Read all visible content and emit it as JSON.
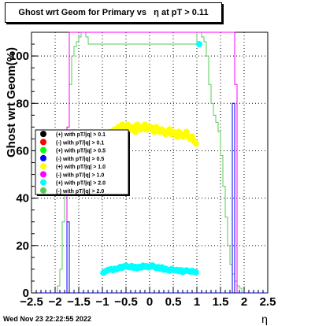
{
  "chart_data": {
    "type": "scatter",
    "title": "Ghost wrt Geom for Primary vs   η at pT > 0.11",
    "xlabel": "η",
    "ylabel": "Ghost wrt Geom(%)",
    "xlim": [
      -2.5,
      2.5
    ],
    "ylim": [
      0,
      110
    ],
    "xticks": [
      -2.5,
      -2,
      -1.5,
      -1,
      -0.5,
      0,
      0.5,
      1,
      1.5,
      2,
      2.5
    ],
    "yticks": [
      0,
      20,
      40,
      60,
      80,
      100
    ],
    "grid": true,
    "legend_position": "left-middle",
    "legend": [
      {
        "label": "(+) with pT/|q| > 0.1",
        "color": "#000000"
      },
      {
        "label": "(-) with pT/|q| > 0.1",
        "color": "#ff0000"
      },
      {
        "label": "(+) with pT/|q| > 0.5",
        "color": "#00ff00"
      },
      {
        "label": "(-) with pT/|q| > 0.5",
        "color": "#0000ff"
      },
      {
        "label": "(+) with pT/|q| > 1.0",
        "color": "#ffff00"
      },
      {
        "label": "(-) with pT/|q| > 1.0",
        "color": "#ff00ff"
      },
      {
        "label": "(+) with pT/|q| > 2.0",
        "color": "#00ffff"
      },
      {
        "label": "(-) with pT/|q| > 2.0",
        "color": "#55cc55"
      }
    ],
    "series": [
      {
        "color": "#ffff00",
        "x": [
          -0.98,
          -0.94,
          -0.9,
          -0.86,
          -0.82,
          -0.78,
          -0.74,
          -0.7,
          -0.66,
          -0.62,
          -0.58,
          -0.54,
          -0.5,
          -0.46,
          -0.42,
          -0.38,
          -0.34,
          -0.3,
          -0.26,
          -0.22,
          -0.18,
          -0.14,
          -0.1,
          -0.06,
          -0.02,
          0.02,
          0.06,
          0.1,
          0.14,
          0.18,
          0.22,
          0.26,
          0.3,
          0.34,
          0.38,
          0.42,
          0.46,
          0.5,
          0.54,
          0.58,
          0.62,
          0.66,
          0.7,
          0.74,
          0.78,
          0.82,
          0.86,
          0.9,
          0.94,
          0.98
        ],
        "y": [
          64,
          66,
          65,
          67,
          68,
          67,
          69,
          68,
          70,
          69,
          71,
          70,
          70,
          71,
          70,
          69,
          70,
          68,
          71,
          70,
          69,
          70,
          71,
          69,
          70,
          70,
          69,
          68,
          70,
          69,
          68,
          69,
          68,
          67,
          68,
          69,
          67,
          68,
          67,
          66,
          68,
          67,
          66,
          67,
          68,
          66,
          65,
          66,
          64,
          63
        ]
      },
      {
        "color": "#00ffff",
        "x": [
          -0.98,
          -0.94,
          -0.9,
          -0.86,
          -0.82,
          -0.78,
          -0.74,
          -0.7,
          -0.66,
          -0.62,
          -0.58,
          -0.54,
          -0.5,
          -0.46,
          -0.42,
          -0.38,
          -0.34,
          -0.3,
          -0.26,
          -0.22,
          -0.18,
          -0.14,
          -0.1,
          -0.06,
          -0.02,
          0.02,
          0.06,
          0.1,
          0.14,
          0.18,
          0.22,
          0.26,
          0.3,
          0.34,
          0.38,
          0.42,
          0.46,
          0.5,
          0.54,
          0.58,
          0.62,
          0.66,
          0.7,
          0.74,
          0.78,
          0.82,
          0.86,
          0.9,
          0.94,
          0.98
        ],
        "y": [
          8.5,
          9,
          9.5,
          9.8,
          10,
          9.6,
          10.2,
          10,
          10.4,
          11,
          10.6,
          11.2,
          11.5,
          11,
          10.8,
          11.4,
          10.6,
          11,
          10.4,
          11,
          10.7,
          11.5,
          11,
          11.3,
          10.8,
          11.2,
          11.6,
          11,
          10.5,
          10.9,
          10.3,
          10.8,
          9.8,
          10.2,
          9.7,
          9.4,
          10,
          9.8,
          9.5,
          9.7,
          9.2,
          9.6,
          8.8,
          9.3,
          9.5,
          9.2,
          9,
          9.3,
          8.9,
          8.7
        ]
      },
      {
        "color": "#00ffff",
        "x": [
          1.05
        ],
        "y": [
          105
        ]
      }
    ],
    "histograms": [
      {
        "color": "#55cc55",
        "edges": [
          -2.5,
          -1.95,
          -1.9,
          -1.85,
          -1.8,
          -1.75,
          -1.7,
          -1.65,
          -1.6,
          -1.55,
          -1.5,
          -1.45,
          -1.4,
          -1.35,
          -1.3,
          -1.0,
          -0.9,
          0.9,
          1.0,
          1.05,
          1.1,
          1.15,
          1.2,
          1.25,
          1.3,
          1.35,
          1.4,
          1.45,
          1.5,
          1.55,
          1.6,
          1.65,
          1.7,
          1.75,
          1.8,
          1.85,
          1.9,
          1.95,
          2.5
        ],
        "values": [
          0,
          3,
          10,
          30,
          50,
          70,
          88,
          100,
          104,
          106,
          108,
          110,
          110,
          108,
          105,
          105,
          105,
          105,
          110,
          110,
          108,
          106,
          100,
          88,
          80,
          75,
          72,
          68,
          58,
          45,
          32,
          20,
          12,
          8,
          5,
          3,
          2,
          0
        ]
      },
      {
        "color": "#ff00ff",
        "edges": [
          -2.5,
          -1.8,
          -1.75,
          -1.7,
          -1.65,
          -1.6,
          -1.5,
          -1.3,
          1.3,
          1.5,
          1.65,
          1.7,
          1.75,
          1.8,
          1.85,
          2.5
        ],
        "values": [
          0,
          0,
          70,
          110,
          110,
          110,
          110,
          110,
          110,
          110,
          110,
          110,
          110,
          88,
          0
        ]
      },
      {
        "color": "#0000ff",
        "edges": [
          -2.5,
          -1.8,
          -1.75,
          -1.7,
          1.75,
          1.8,
          1.85,
          2.5
        ],
        "values": [
          0,
          0,
          30,
          0,
          80,
          0,
          0
        ]
      }
    ]
  },
  "footer_timestamp": "Wed Nov 23 22:22:55 2022"
}
